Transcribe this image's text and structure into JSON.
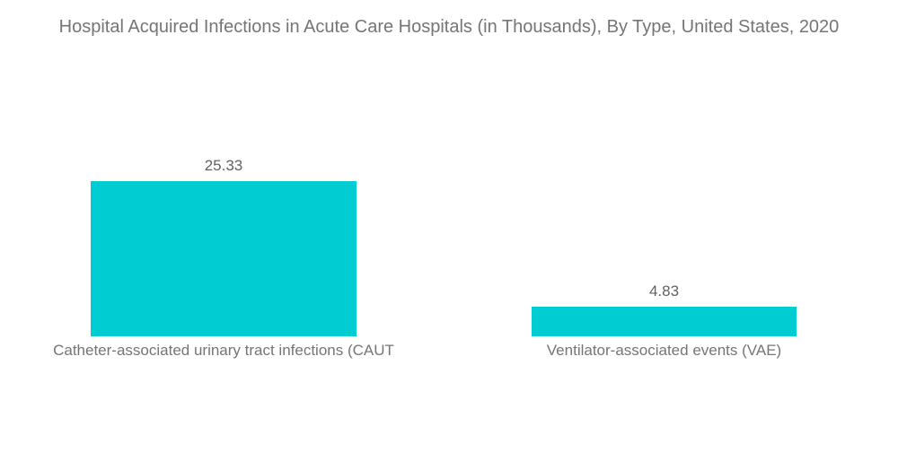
{
  "chart_data": {
    "type": "bar",
    "orientation": "vertical",
    "title": "Hospital Acquired Infections in Acute Care Hospitals (in Thousands), By Type, United States, 2020",
    "categories": [
      "Catheter-associated urinary tract infections (CAUT",
      "Ventilator-associated events (VAE)"
    ],
    "values": [
      25.33,
      4.83
    ],
    "value_labels": [
      "25.33",
      "4.83"
    ],
    "xlabel": "",
    "ylabel": "",
    "ylim": [
      0,
      27
    ],
    "grid": false,
    "legend": "none",
    "axes_shown": false
  },
  "colors": {
    "background": "#FFFFFF",
    "bar": "#00CCD2",
    "title_text": "#757575",
    "value_text": "#616161",
    "label_text": "#757575"
  }
}
